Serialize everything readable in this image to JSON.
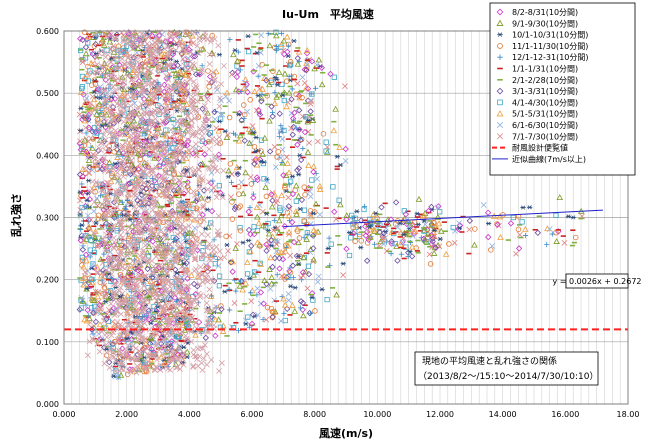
{
  "chart_data": {
    "type": "scatter",
    "title": "Iu-Um　平均風速",
    "xlabel": "風速(m/s)",
    "ylabel": "乱れ強さ",
    "xlim": [
      0,
      18
    ],
    "ylim": [
      0,
      0.6
    ],
    "x_ticks": [
      "0.000",
      "2.000",
      "4.000",
      "6.000",
      "8.000",
      "10.000",
      "12.000",
      "14.000",
      "16.000",
      "18.00"
    ],
    "y_ticks": [
      "0.000",
      "0.100",
      "0.200",
      "0.300",
      "0.400",
      "0.500",
      "0.600"
    ],
    "grid": "vertical and horizontal",
    "legend_position": "top-right",
    "series": [
      {
        "name": "8/2-8/31(10分間)",
        "color": "#cc33cc",
        "marker": "diamond"
      },
      {
        "name": "9/1-9/30(10分間)",
        "color": "#7a9a20",
        "marker": "triangle"
      },
      {
        "name": "10/1-10/31(10分間)",
        "color": "#2a4a7a",
        "marker": "star"
      },
      {
        "name": "11/1-11/30(10分間)",
        "color": "#e07830",
        "marker": "circle"
      },
      {
        "name": "12/1-12-31(10分間)",
        "color": "#3a8ac8",
        "marker": "plus"
      },
      {
        "name": "1/1-1/31(10分間)",
        "color": "#cc2020",
        "marker": "dash"
      },
      {
        "name": "2/1-2/28(10分間)",
        "color": "#80b040",
        "marker": "dash"
      },
      {
        "name": "3/1-3/31(10分間)",
        "color": "#6a4aa0",
        "marker": "diamond"
      },
      {
        "name": "4/1-4/30(10分間)",
        "color": "#40a8c8",
        "marker": "square"
      },
      {
        "name": "5/1-5/31(10分間)",
        "color": "#f0a040",
        "marker": "triangle"
      },
      {
        "name": "6/1-6/30(10分間)",
        "color": "#90b0e0",
        "marker": "x"
      },
      {
        "name": "7/1-7/30(10分間)",
        "color": "#e08080",
        "marker": "x"
      }
    ],
    "design_line": {
      "name": "耐風設計便覧値",
      "y": 0.12,
      "color": "#ff2020"
    },
    "fit_line": {
      "name": "近似曲線(7m/s以上)",
      "slope": 0.0026,
      "intercept": 0.2672,
      "x_range": [
        7,
        17.2
      ],
      "color": "#2020cc"
    },
    "equation_label": "y = 0.0026x + 0.2672",
    "note_lines": [
      "現地の平均風速と乱れ強さの関係",
      "（2013/8/2〜/15:10〜2014/7/30/10:10）"
    ]
  }
}
